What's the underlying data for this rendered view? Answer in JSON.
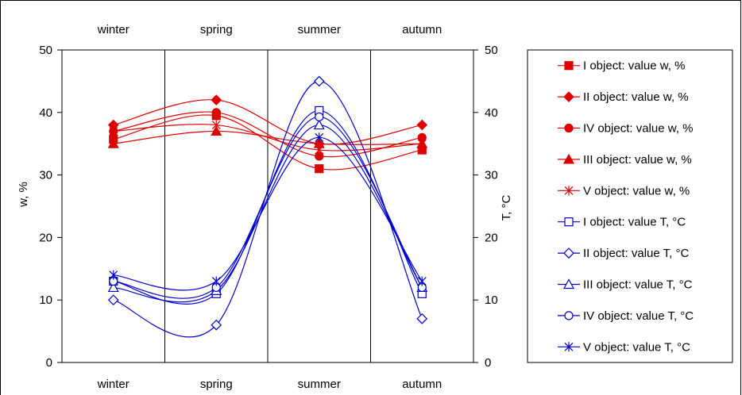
{
  "chart_data": {
    "type": "line",
    "categories": [
      "winter",
      "spring",
      "summer",
      "autumn"
    ],
    "ylabel_left": "w, %",
    "ylabel_right": "T, °C",
    "ylim_left": [
      0,
      50
    ],
    "ylim_right": [
      0,
      50
    ],
    "yticks_left": [
      "0",
      "10",
      "20",
      "30",
      "40",
      "50"
    ],
    "yticks_right": [
      "0",
      "10",
      "20",
      "30",
      "40",
      "50"
    ],
    "grid": "vertical season separators",
    "legend_position": "right",
    "colors": {
      "w": "#dd0000",
      "T": "#0000cc"
    },
    "series": [
      {
        "name": "I object: value w, %",
        "axis": "left",
        "group": "w",
        "marker": "square-filled",
        "values": [
          35.7,
          39.5,
          31.0,
          34.0
        ]
      },
      {
        "name": "II object: value w, %",
        "axis": "left",
        "group": "w",
        "marker": "diamond-filled",
        "values": [
          38.0,
          42.0,
          35.0,
          38.0
        ]
      },
      {
        "name": "IV object: value w, %",
        "axis": "left",
        "group": "w",
        "marker": "circle-filled",
        "values": [
          37.0,
          40.0,
          33.0,
          36.0
        ]
      },
      {
        "name": "III object: value w, %",
        "axis": "left",
        "group": "w",
        "marker": "triangle-filled",
        "values": [
          35.0,
          37.0,
          35.0,
          35.0
        ]
      },
      {
        "name": "V object: value w, %",
        "axis": "left",
        "group": "w",
        "marker": "asterisk",
        "values": [
          37.0,
          38.0,
          34.0,
          35.0
        ]
      },
      {
        "name": "I object: value T, °C",
        "axis": "right",
        "group": "T",
        "marker": "square-open",
        "values": [
          13.0,
          11.0,
          40.3,
          11.0
        ]
      },
      {
        "name": "II object: value T, °C",
        "axis": "right",
        "group": "T",
        "marker": "diamond-open",
        "values": [
          10.0,
          6.0,
          45.0,
          7.0
        ]
      },
      {
        "name": "III object: value T, °C",
        "axis": "right",
        "group": "T",
        "marker": "triangle-open",
        "values": [
          12.0,
          11.5,
          38.0,
          12.0
        ]
      },
      {
        "name": "IV object: value T, °C",
        "axis": "right",
        "group": "T",
        "marker": "circle-open",
        "values": [
          13.0,
          12.0,
          39.3,
          12.0
        ]
      },
      {
        "name": "V object: value T, °C",
        "axis": "right",
        "group": "T",
        "marker": "asterisk",
        "values": [
          14.0,
          13.0,
          36.0,
          13.0
        ]
      }
    ]
  }
}
